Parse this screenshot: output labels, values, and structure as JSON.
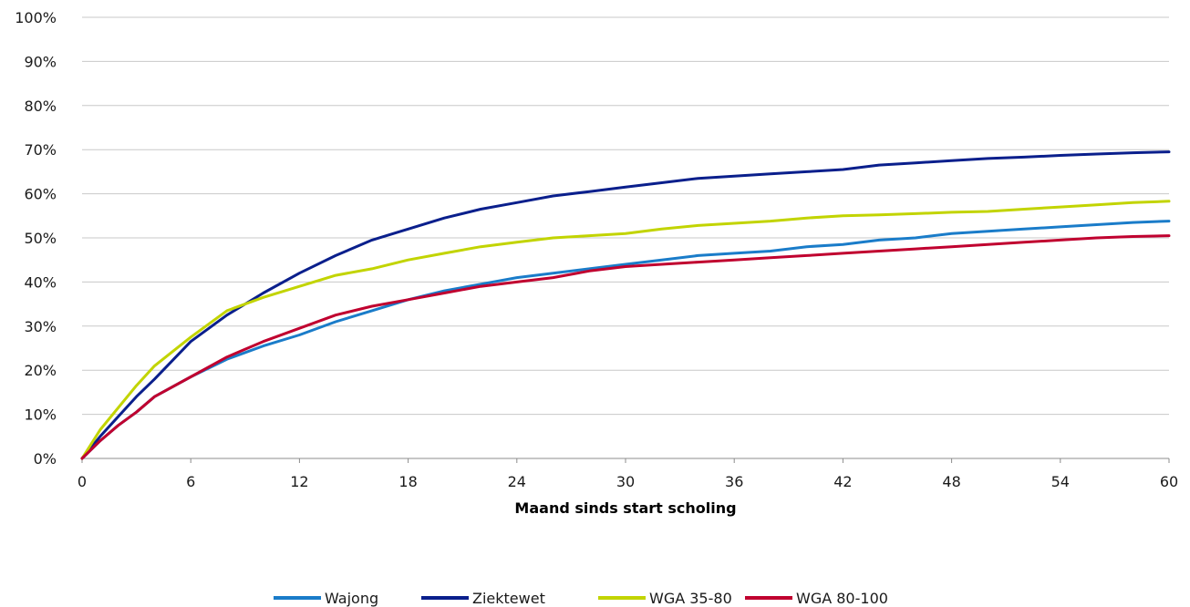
{
  "chart_data": {
    "type": "line",
    "title": "",
    "xlabel": "Maand sinds start scholing",
    "ylabel": "",
    "xlim": [
      0,
      60
    ],
    "ylim": [
      0,
      1
    ],
    "x_ticks": [
      0,
      6,
      12,
      18,
      24,
      30,
      36,
      42,
      48,
      54,
      60
    ],
    "y_ticks": [
      {
        "value": 0,
        "label": "0%"
      },
      {
        "value": 0.1,
        "label": "10%"
      },
      {
        "value": 0.2,
        "label": "20%"
      },
      {
        "value": 0.3,
        "label": "30%"
      },
      {
        "value": 0.4,
        "label": "40%"
      },
      {
        "value": 0.5,
        "label": "50%"
      },
      {
        "value": 0.6,
        "label": "60%"
      },
      {
        "value": 0.7,
        "label": "70%"
      },
      {
        "value": 0.8,
        "label": "80%"
      },
      {
        "value": 0.9,
        "label": "90%"
      },
      {
        "value": 1,
        "label": "100%"
      }
    ],
    "grid": "horizontal",
    "legend_position": "bottom",
    "x": [
      0,
      1,
      2,
      3,
      4,
      6,
      8,
      10,
      12,
      14,
      16,
      18,
      20,
      22,
      24,
      26,
      28,
      30,
      32,
      34,
      36,
      38,
      40,
      42,
      44,
      46,
      48,
      50,
      52,
      54,
      56,
      58,
      60
    ],
    "series": [
      {
        "name": "Wajong",
        "color": "#1a7cc9",
        "values": [
          0,
          0.04,
          0.075,
          0.105,
          0.14,
          0.185,
          0.225,
          0.255,
          0.28,
          0.31,
          0.335,
          0.36,
          0.38,
          0.395,
          0.41,
          0.42,
          0.43,
          0.44,
          0.45,
          0.46,
          0.465,
          0.47,
          0.48,
          0.485,
          0.495,
          0.5,
          0.51,
          0.515,
          0.52,
          0.525,
          0.53,
          0.535,
          0.538
        ]
      },
      {
        "name": "Ziektewet",
        "color": "#0a1f8c",
        "values": [
          0,
          0.05,
          0.095,
          0.14,
          0.18,
          0.265,
          0.325,
          0.375,
          0.42,
          0.46,
          0.495,
          0.52,
          0.545,
          0.565,
          0.58,
          0.595,
          0.605,
          0.615,
          0.625,
          0.635,
          0.64,
          0.645,
          0.65,
          0.655,
          0.665,
          0.67,
          0.675,
          0.68,
          0.683,
          0.687,
          0.69,
          0.693,
          0.695
        ]
      },
      {
        "name": "WGA 35-80",
        "color": "#c2d400",
        "values": [
          0,
          0.065,
          0.115,
          0.165,
          0.21,
          0.275,
          0.335,
          0.365,
          0.39,
          0.415,
          0.43,
          0.45,
          0.465,
          0.48,
          0.49,
          0.5,
          0.505,
          0.51,
          0.52,
          0.528,
          0.533,
          0.538,
          0.545,
          0.55,
          0.552,
          0.555,
          0.558,
          0.56,
          0.565,
          0.57,
          0.575,
          0.58,
          0.583
        ]
      },
      {
        "name": "WGA 80-100",
        "color": "#c0002f",
        "values": [
          0,
          0.04,
          0.075,
          0.105,
          0.14,
          0.185,
          0.23,
          0.265,
          0.295,
          0.325,
          0.345,
          0.36,
          0.375,
          0.39,
          0.4,
          0.41,
          0.425,
          0.435,
          0.44,
          0.445,
          0.45,
          0.455,
          0.46,
          0.465,
          0.47,
          0.475,
          0.48,
          0.485,
          0.49,
          0.495,
          0.5,
          0.503,
          0.505
        ]
      }
    ]
  }
}
